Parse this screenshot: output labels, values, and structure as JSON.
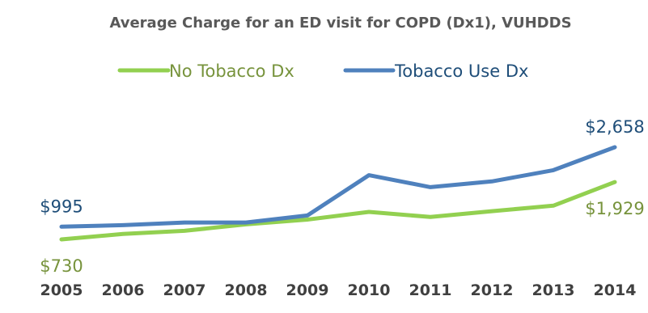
{
  "chart_data": {
    "type": "line",
    "title": "Average Charge for an ED visit for COPD (Dx1), VUHDDS",
    "xlabel": "",
    "ylabel": "",
    "x": [
      "2005",
      "2006",
      "2007",
      "2008",
      "2009",
      "2010",
      "2011",
      "2012",
      "2013",
      "2014"
    ],
    "ylim": [
      0,
      3000
    ],
    "grid": false,
    "legend_position": "top",
    "series": [
      {
        "name": "No Tobacco Dx",
        "color": "#92D050",
        "label_color": "#77933C",
        "values": [
          730,
          843,
          909,
          1045,
          1144,
          1305,
          1198,
          1320,
          1436,
          1929
        ]
      },
      {
        "name": "Tobacco Use Dx",
        "color": "#4F81BD",
        "label_color": "#1F4E79",
        "values": [
          995,
          1027,
          1083,
          1083,
          1230,
          2072,
          1822,
          1943,
          2178,
          2658
        ]
      }
    ],
    "data_labels": [
      {
        "series": 0,
        "point": 0,
        "text": "$730",
        "placement": "below"
      },
      {
        "series": 0,
        "point": 9,
        "text": "$1,929",
        "placement": "below"
      },
      {
        "series": 1,
        "point": 0,
        "text": "$995",
        "placement": "above"
      },
      {
        "series": 1,
        "point": 9,
        "text": "$2,658",
        "placement": "above"
      }
    ]
  }
}
